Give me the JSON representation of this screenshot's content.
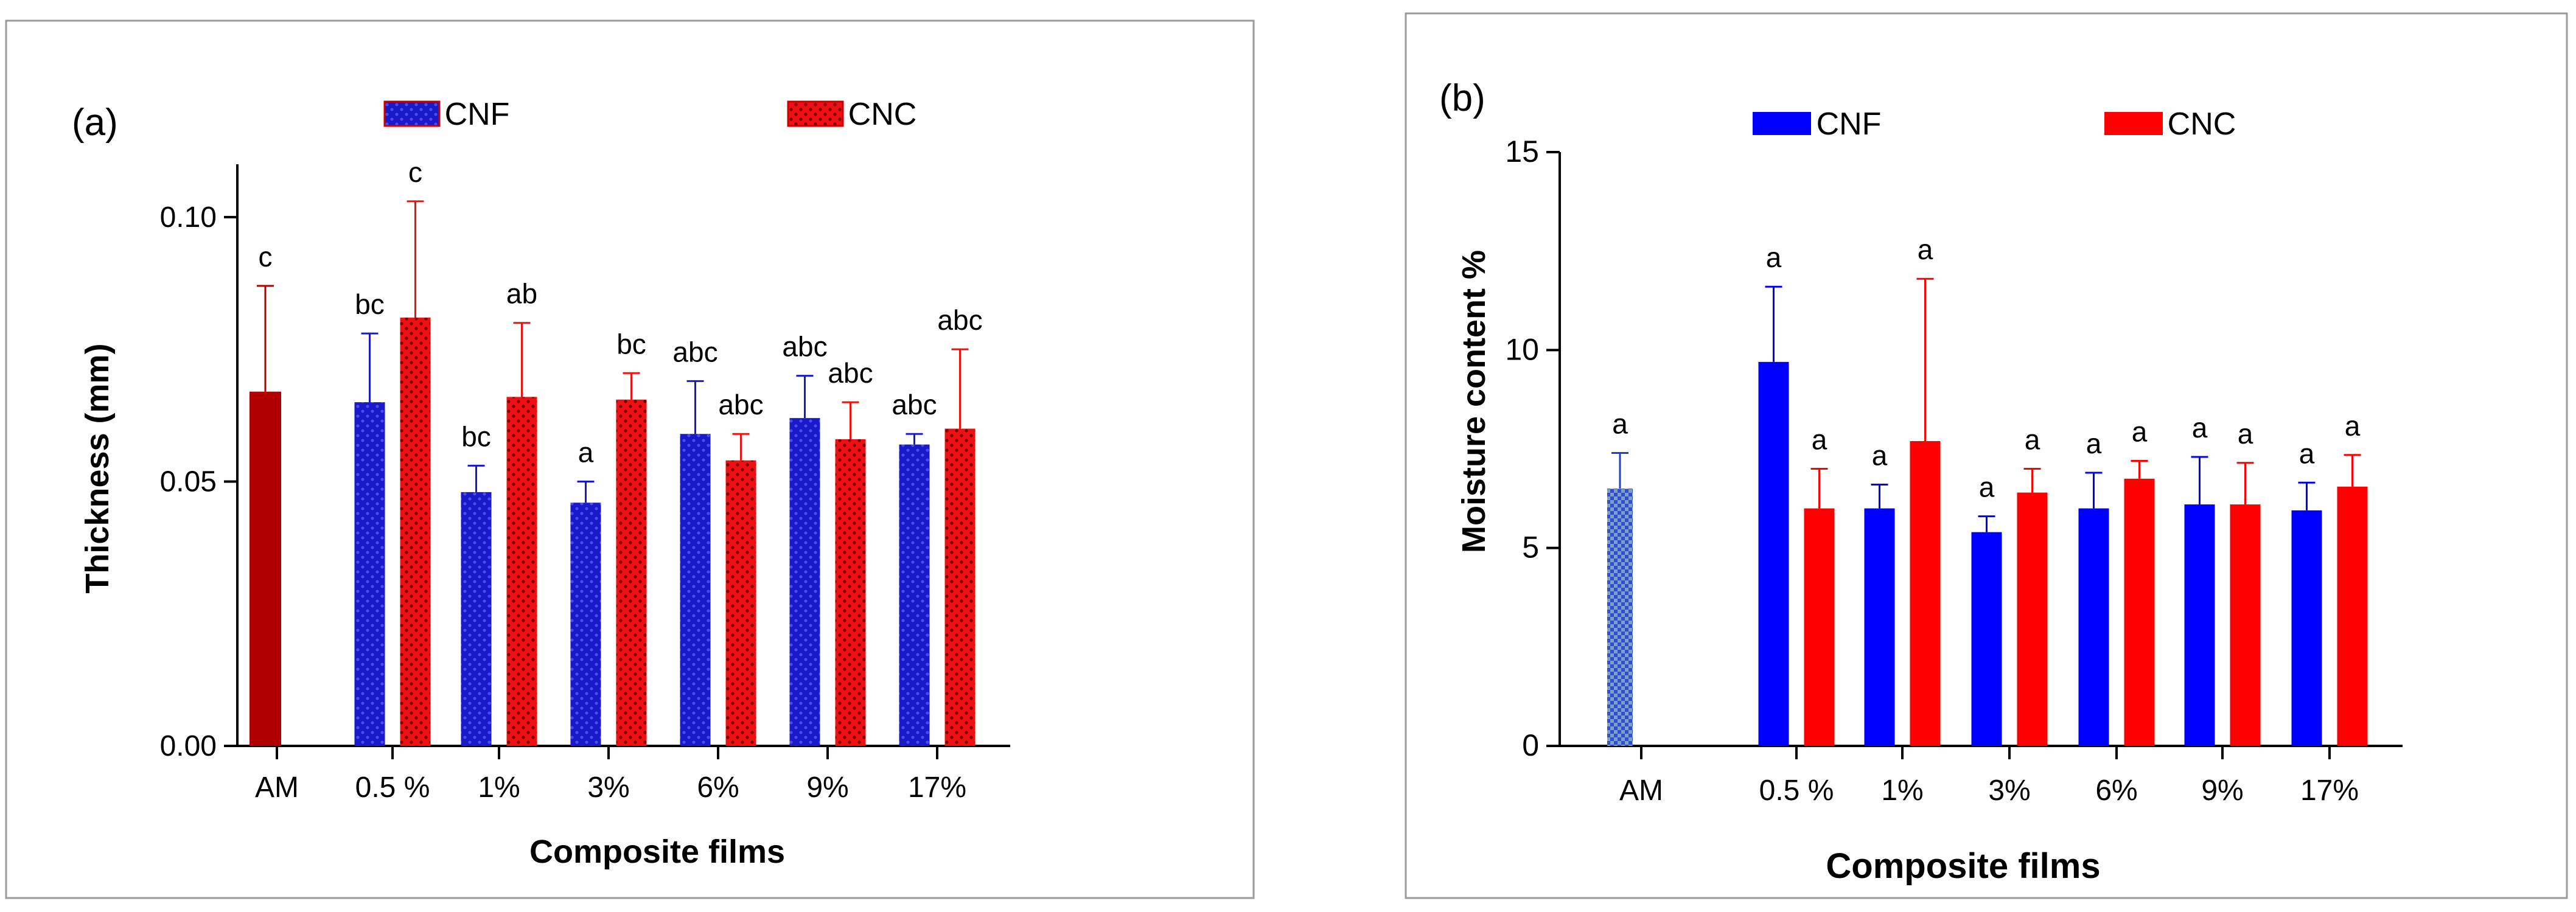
{
  "chart_data": [
    {
      "panel_label": "(a)",
      "type": "bar",
      "categories": [
        "AM",
        "0.5 %",
        "1%",
        "3%",
        "6%",
        "9%",
        "17%"
      ],
      "xlabel": "Composite films",
      "ylabel": "Thickness (mm)",
      "ylim": [
        0,
        0.11
      ],
      "yticks": [
        "0.00",
        "0.05",
        "0.10"
      ],
      "ytick_values": [
        0,
        0.05,
        0.1
      ],
      "legend_position": "top-center",
      "control": {
        "name": "AM",
        "value": 0.067,
        "error": 0.02,
        "letter": "c",
        "color": "#b20000"
      },
      "series": [
        {
          "name": "CNF",
          "color": "#1a1acc",
          "pattern": "dots",
          "values": [
            null,
            0.065,
            0.048,
            0.046,
            0.059,
            0.062,
            0.057
          ],
          "errors": [
            null,
            0.013,
            0.005,
            0.004,
            0.01,
            0.008,
            0.002
          ],
          "letters": [
            null,
            "bc",
            "bc",
            "a",
            "abc",
            "abc",
            "abc"
          ]
        },
        {
          "name": "CNC",
          "color": "#ee1111",
          "pattern": "dots",
          "values": [
            null,
            0.081,
            0.066,
            0.0655,
            0.054,
            0.058,
            0.06
          ],
          "errors": [
            null,
            0.022,
            0.014,
            0.005,
            0.005,
            0.007,
            0.015
          ],
          "letters": [
            null,
            "c",
            "ab",
            "bc",
            "abc",
            "abc",
            "abc"
          ]
        }
      ]
    },
    {
      "panel_label": "(b)",
      "type": "bar",
      "categories": [
        "AM",
        "0.5 %",
        "1%",
        "3%",
        "6%",
        "9%",
        "17%"
      ],
      "xlabel": "Composite films",
      "ylabel": "Moisture content %",
      "ylim": [
        0,
        15
      ],
      "yticks": [
        "0",
        "5",
        "10",
        "15"
      ],
      "ytick_values": [
        0,
        5,
        10,
        15
      ],
      "legend_position": "top-center",
      "control": {
        "name": "AM",
        "value": 6.5,
        "error": 0.9,
        "letter": "a",
        "color": "#2040c8"
      },
      "series": [
        {
          "name": "CNF",
          "color": "#0000ff",
          "pattern": "solid",
          "values": [
            null,
            9.7,
            6.0,
            5.4,
            6.0,
            6.1,
            5.95
          ],
          "errors": [
            null,
            1.9,
            0.6,
            0.4,
            0.9,
            1.2,
            0.7
          ],
          "letters": [
            null,
            "a",
            "a",
            "a",
            "a",
            "a",
            "a"
          ]
        },
        {
          "name": "CNC",
          "color": "#ff0000",
          "pattern": "solid",
          "values": [
            null,
            6.0,
            7.7,
            6.4,
            6.75,
            6.1,
            6.55
          ],
          "errors": [
            null,
            1.0,
            4.1,
            0.6,
            0.45,
            1.05,
            0.8
          ],
          "letters": [
            null,
            "a",
            "a",
            "a",
            "a",
            "a",
            "a"
          ]
        }
      ]
    }
  ]
}
